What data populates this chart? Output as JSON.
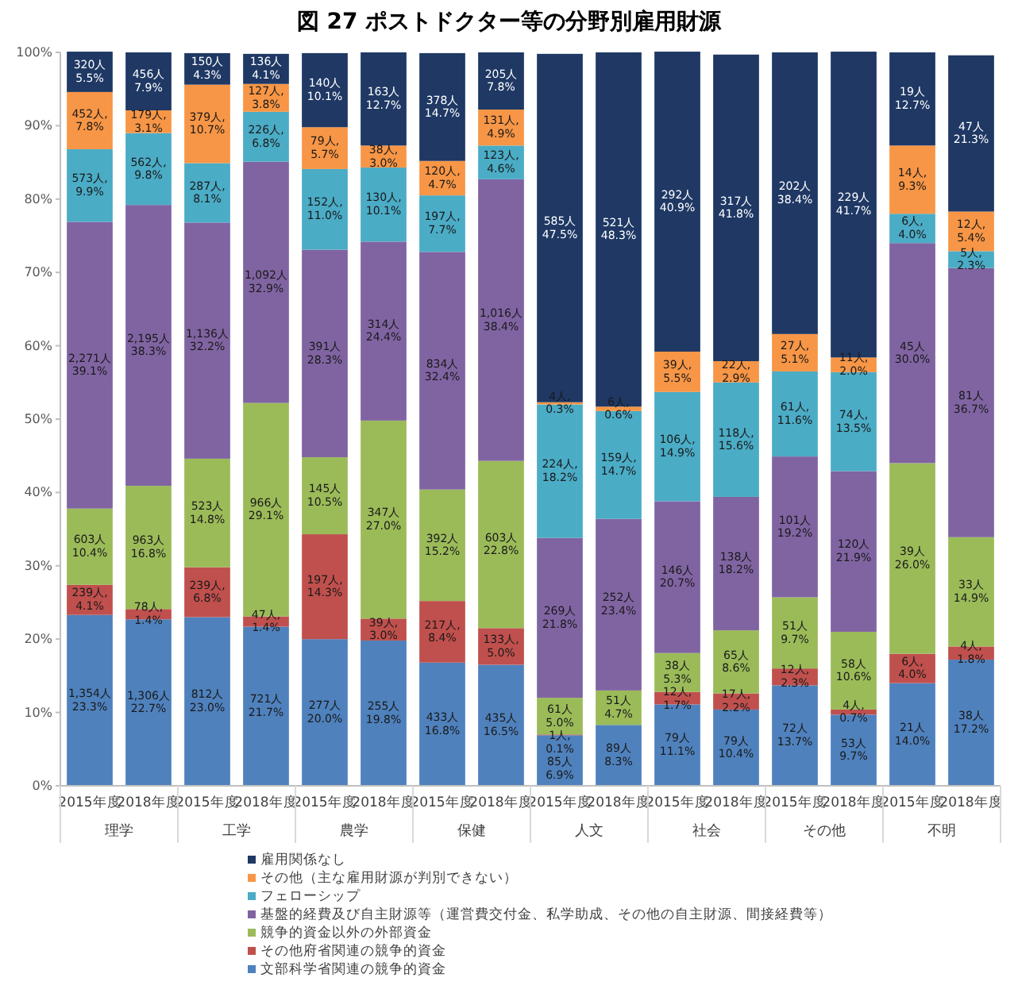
{
  "chart_data": {
    "type": "bar",
    "stacked": true,
    "title": "図 27  ポストドクター等の分野別雇用財源",
    "categories": [
      "2015年度",
      "2018年度",
      "2015年度",
      "2018年度",
      "2015年度",
      "2018年度",
      "2015年度",
      "2018年度",
      "2015年度",
      "2018年度",
      "2015年度",
      "2018年度",
      "2015年度",
      "2018年度",
      "2015年度",
      "2018年度"
    ],
    "annotations": [
      "理学",
      "工学",
      "農学",
      "保健",
      "人文",
      "社会",
      "その他",
      "不明"
    ],
    "ylim": [
      0,
      100
    ],
    "yticks": [
      {
        "value": 0,
        "label": "0%"
      },
      {
        "value": 10,
        "label": "10%"
      },
      {
        "value": 20,
        "label": "20%"
      },
      {
        "value": 30,
        "label": "30%"
      },
      {
        "value": 40,
        "label": "40%"
      },
      {
        "value": 50,
        "label": "50%"
      },
      {
        "value": 60,
        "label": "60%"
      },
      {
        "value": 70,
        "label": "70%"
      },
      {
        "value": 80,
        "label": "80%"
      },
      {
        "value": 90,
        "label": "90%"
      },
      {
        "value": 100,
        "label": "100%"
      }
    ],
    "legend": "bottom",
    "grid": false,
    "series": [
      {
        "name": "文部科学省関連の競争的資金",
        "color": "#4f81bd",
        "values": [
          23.3,
          22.7,
          23.0,
          21.7,
          20.0,
          19.8,
          16.8,
          16.5,
          6.9,
          8.3,
          11.1,
          10.4,
          13.7,
          9.7,
          14.0,
          17.2
        ],
        "value_labels": [
          "1,354人\n23.3%",
          "1,306人\n22.7%",
          "812人\n23.0%",
          "721人\n21.7%",
          "277人\n20.0%",
          "255人\n19.8%",
          "433人\n16.8%",
          "435人\n16.5%",
          "85人\n6.9%",
          "89人\n8.3%",
          "79人\n11.1%",
          "79人\n10.4%",
          "72人\n13.7%",
          "53人\n9.7%",
          "21人\n14.0%",
          "38人\n17.2%"
        ]
      },
      {
        "name": "その他府省関連の競争的資金",
        "color": "#c0504d",
        "values": [
          4.1,
          1.4,
          6.8,
          1.4,
          14.3,
          3.0,
          8.4,
          5.0,
          0.1,
          null,
          1.7,
          2.2,
          2.3,
          0.7,
          4.0,
          1.8
        ],
        "value_labels": [
          "239人,\n4.1%",
          "78人,\n1.4%",
          "239人,\n6.8%",
          "47人,\n1.4%",
          "197人,\n14.3%",
          "39人,\n3.0%",
          "217人,\n8.4%",
          "133人,\n5.0%",
          "1人,\n0.1%",
          null,
          "12人,\n1.7%",
          "17人,\n2.2%",
          "12人,\n2.3%",
          "4人,\n0.7%",
          "6人,\n4.0%",
          "4人,\n1.8%"
        ]
      },
      {
        "name": "競争的資金以外の外部資金",
        "color": "#9bbb59",
        "values": [
          10.4,
          16.8,
          14.8,
          29.1,
          10.5,
          27.0,
          15.2,
          22.8,
          5.0,
          4.7,
          5.3,
          8.6,
          9.7,
          10.6,
          26.0,
          14.9
        ],
        "value_labels": [
          "603人\n10.4%",
          "963人\n16.8%",
          "523人\n14.8%",
          "966人\n29.1%",
          "145人\n10.5%",
          "347人\n27.0%",
          "392人\n15.2%",
          "603人\n22.8%",
          "61人\n5.0%",
          "51人\n4.7%",
          "38人\n5.3%",
          "65人\n8.6%",
          "51人\n9.7%",
          "58人\n10.6%",
          "39人\n26.0%",
          "33人\n14.9%"
        ]
      },
      {
        "name": "基盤的経費及び自主財源等（運営費交付金、私学助成、その他の自主財源、間接経費等）",
        "color": "#8064a2",
        "values": [
          39.1,
          38.3,
          32.2,
          32.9,
          28.3,
          24.4,
          32.4,
          38.4,
          21.8,
          23.4,
          20.7,
          18.2,
          19.2,
          21.9,
          30.0,
          36.7
        ],
        "value_labels": [
          "2,271人\n39.1%",
          "2,195人\n38.3%",
          "1,136人\n32.2%",
          "1,092人\n32.9%",
          "391人\n28.3%",
          "314人\n24.4%",
          "834人\n32.4%",
          "1,016人\n38.4%",
          "269人\n21.8%",
          "252人\n23.4%",
          "146人\n20.7%",
          "138人\n18.2%",
          "101人\n19.2%",
          "120人\n21.9%",
          "45人\n30.0%",
          "81人\n36.7%"
        ]
      },
      {
        "name": "フェローシップ",
        "color": "#4bacc6",
        "values": [
          9.9,
          9.8,
          8.1,
          6.8,
          11.0,
          10.1,
          7.7,
          4.6,
          18.2,
          14.7,
          14.9,
          15.6,
          11.6,
          13.5,
          4.0,
          2.3
        ],
        "value_labels": [
          "573人,\n9.9%",
          "562人,\n9.8%",
          "287人,\n8.1%",
          "226人,\n6.8%",
          "152人,\n11.0%",
          "130人,\n10.1%",
          "197人,\n7.7%",
          "123人,\n4.6%",
          "224人,\n18.2%",
          "159人,\n14.7%",
          "106人,\n14.9%",
          "118人,\n15.6%",
          "61人,\n11.6%",
          "74人,\n13.5%",
          "6人,\n4.0%",
          "5人,\n2.3%"
        ]
      },
      {
        "name": "その他（主な雇用財源が判別できない）",
        "color": "#f79646",
        "values": [
          7.8,
          3.1,
          10.7,
          3.8,
          5.7,
          3.0,
          4.7,
          4.9,
          0.3,
          0.6,
          5.5,
          2.9,
          5.1,
          2.0,
          9.3,
          5.4
        ],
        "value_labels": [
          "452人,\n7.8%",
          "179人,\n3.1%",
          "379人,\n10.7%",
          "127人,\n3.8%",
          "79人,\n5.7%",
          "38人,\n3.0%",
          "120人,\n4.7%",
          "131人,\n4.9%",
          "4人,\n0.3%",
          "6人,\n0.6%",
          "39人,\n5.5%",
          "22人,\n2.9%",
          "27人,\n5.1%",
          "11人,\n2.0%",
          "14人,\n9.3%",
          "12人,\n5.4%"
        ]
      },
      {
        "name": "雇用関係なし",
        "color": "#1f3864",
        "values": [
          5.5,
          7.9,
          4.3,
          4.1,
          10.1,
          12.7,
          14.7,
          7.8,
          47.5,
          48.3,
          40.9,
          41.8,
          38.4,
          41.7,
          12.7,
          21.3
        ],
        "value_labels": [
          "320人\n5.5%",
          "456人\n7.9%",
          "150人\n4.3%",
          "136人\n4.1%",
          "140人\n10.1%",
          "163人\n12.7%",
          "378人\n14.7%",
          "205人\n7.8%",
          "585人\n47.5%",
          "521人\n48.3%",
          "292人\n40.9%",
          "317人\n41.8%",
          "202人\n38.4%",
          "229人\n41.7%",
          "19人\n12.7%",
          "47人\n21.3%"
        ]
      }
    ]
  }
}
